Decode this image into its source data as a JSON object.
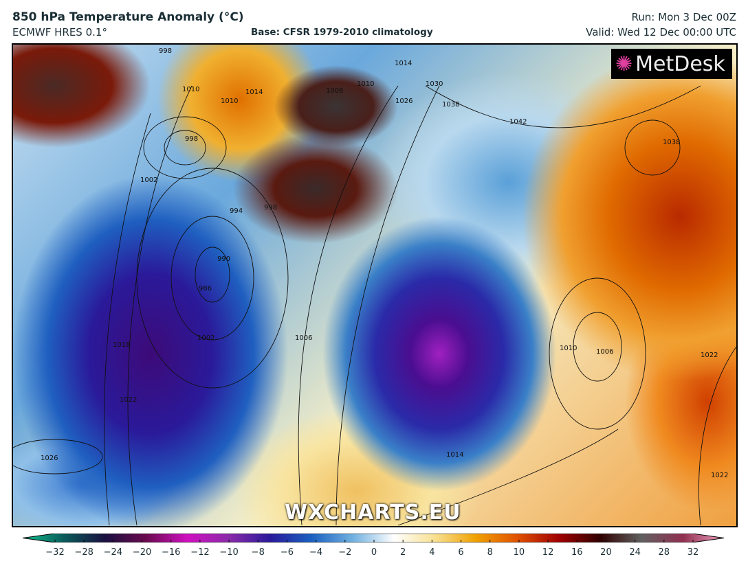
{
  "header": {
    "title": "850 hPa Temperature Anomaly (°C)",
    "model": "ECMWF HRES 0.1°",
    "base": "Base: CFSR 1979-2010 climatology",
    "run": "Run: Mon 3 Dec 00Z",
    "valid": "Valid: Wed 12 Dec 00:00 UTC"
  },
  "map": {
    "logo": "MetDesk",
    "watermark": "WXCHARTS.EU",
    "isobar_labels": [
      "998",
      "1010",
      "1010",
      "1014",
      "1006",
      "1010",
      "1014",
      "1026",
      "1030",
      "1038",
      "1042",
      "1038",
      "998",
      "1002",
      "994",
      "990",
      "986",
      "998",
      "1006",
      "1002",
      "1018",
      "1022",
      "1026",
      "1010",
      "1006",
      "1014",
      "1022",
      "1022"
    ]
  },
  "colorbar": {
    "unit": "°C",
    "extend": "both",
    "ticks": [
      "−32",
      "−28",
      "−24",
      "−20",
      "−16",
      "−12",
      "−10",
      "−8",
      "−6",
      "−4",
      "−2",
      "0",
      "2",
      "4",
      "6",
      "8",
      "10",
      "12",
      "16",
      "20",
      "24",
      "28",
      "32"
    ],
    "colors": [
      "#10c090",
      "#0a5a5a",
      "#1a1040",
      "#6a0a50",
      "#d010c0",
      "#8a2aa8",
      "#2a1a9a",
      "#1a60c0",
      "#70b0e0",
      "#ffffff",
      "#f8e090",
      "#f0a000",
      "#e05000",
      "#a00000",
      "#300000",
      "#606060",
      "#903050",
      "#f0a0c0"
    ]
  }
}
